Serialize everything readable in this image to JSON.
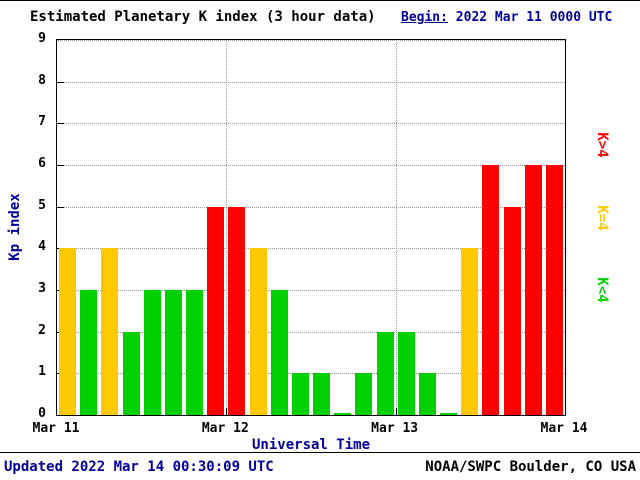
{
  "header": {
    "begin_label": "Begin:",
    "begin_value": "2022 Mar 11 0000 UTC"
  },
  "footer": {
    "updated": "Updated 2022 Mar 14 00:30:09 UTC",
    "source": "NOAA/SWPC Boulder, CO USA"
  },
  "colors": {
    "red": "#ff0000",
    "yellow": "#ffc800",
    "green": "#00d000",
    "heading_blue": "#000099",
    "grid_dots": "#999999",
    "axis_black": "#000000"
  },
  "legend": [
    {
      "label": "K>4",
      "color": "red"
    },
    {
      "label": "K=4",
      "color": "yellow"
    },
    {
      "label": "K<4",
      "color": "green"
    }
  ],
  "chart_data": {
    "type": "bar",
    "title": "Estimated Planetary K index (3 hour data)",
    "xlabel": "Universal Time",
    "ylabel": "Kp index",
    "ylim": [
      0,
      9
    ],
    "yticks": [
      0,
      1,
      2,
      3,
      4,
      5,
      6,
      7,
      8,
      9
    ],
    "xticks": [
      "Mar 11",
      "Mar 12",
      "Mar 13",
      "Mar 14"
    ],
    "interval_hours": 3,
    "values": [
      4,
      3,
      4,
      2,
      3,
      3,
      3,
      5,
      5,
      4,
      3,
      1,
      1,
      0,
      1,
      2,
      2,
      1,
      0,
      4,
      6,
      5,
      6,
      6
    ],
    "color_rule": "green if K<4, yellow if K=4, red if K>4",
    "grid": "dotted horizontal at each Kp integer, dotted vertical at day boundaries",
    "legend_position": "right, rotated"
  }
}
